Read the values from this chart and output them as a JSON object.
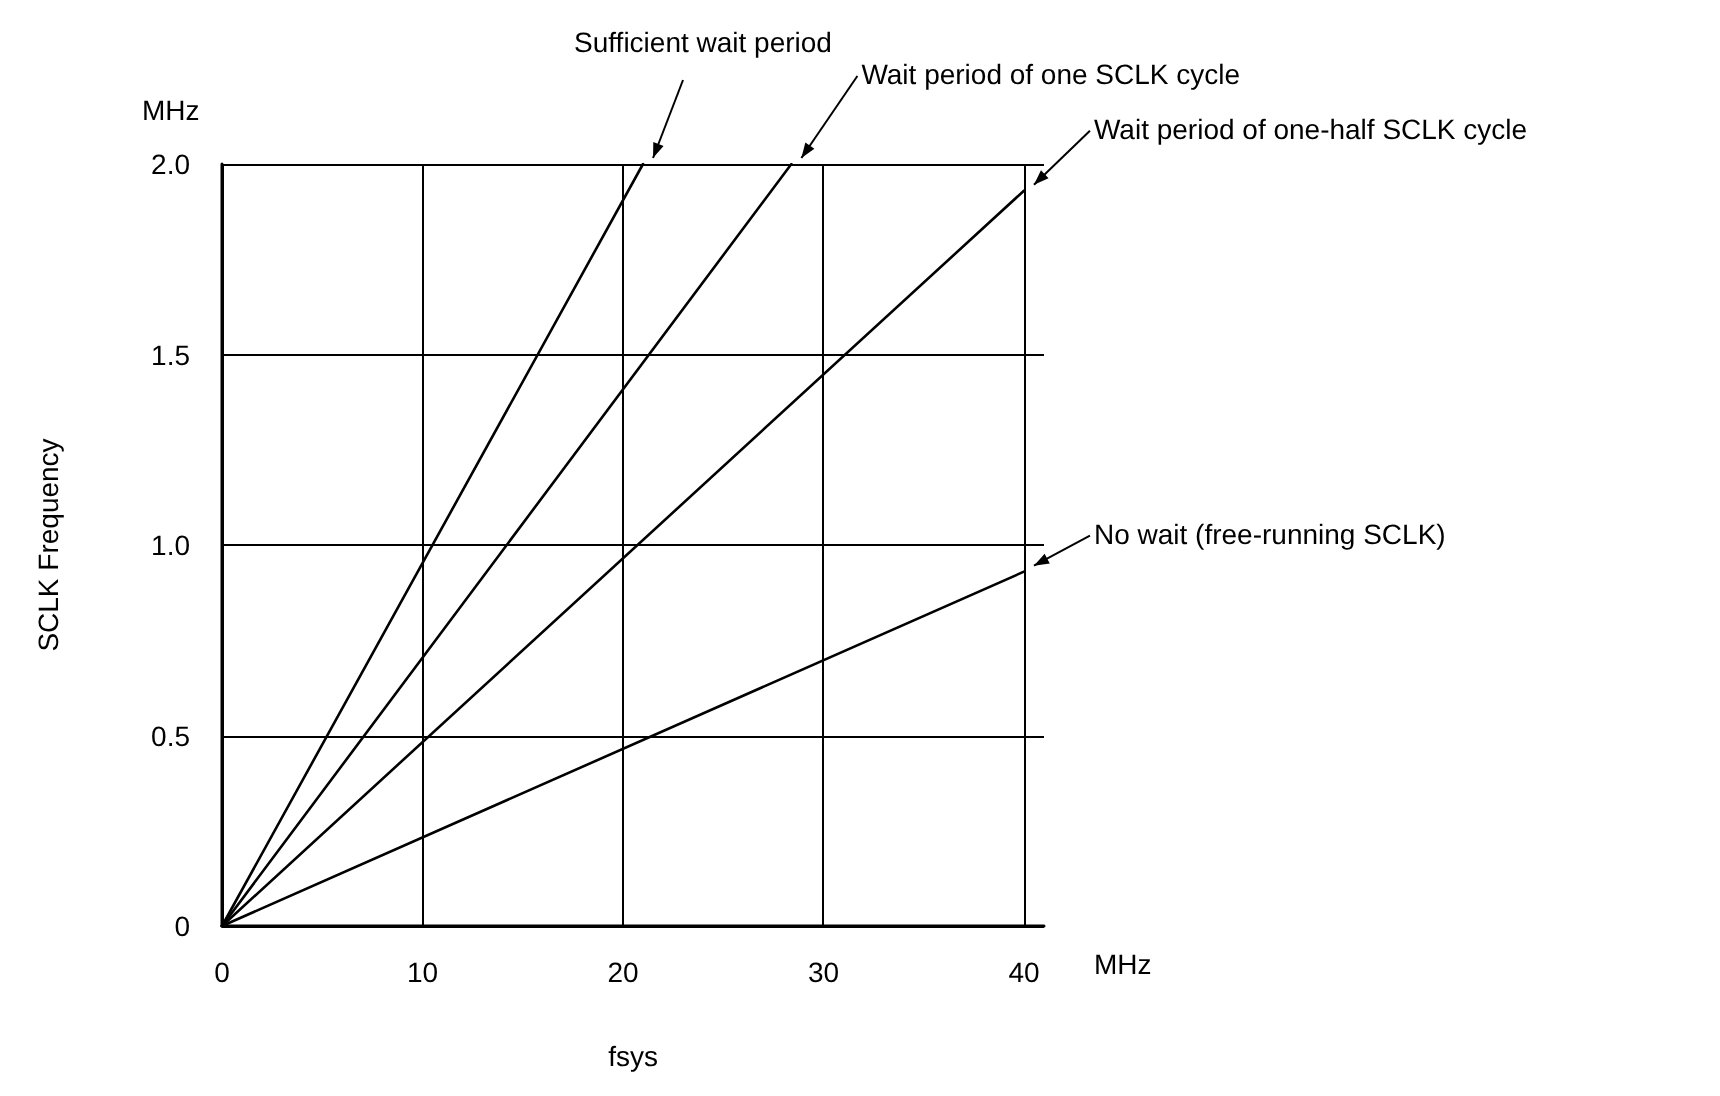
{
  "chart_data": {
    "type": "line",
    "xlabel": "fsys",
    "ylabel": "SCLK Frequency",
    "xlim": [
      0,
      41
    ],
    "ylim": [
      0,
      2
    ],
    "xticks": [
      0,
      10,
      20,
      30,
      40
    ],
    "yticks": [
      0,
      0.5,
      {
        "value": 1,
        "label": "1.0"
      },
      1.5,
      {
        "value": 2,
        "label": "2.0"
      }
    ],
    "grid": true,
    "marker": "none",
    "line_style": "solid",
    "series": [
      {
        "color": "#000000",
        "x": [
          0,
          21
        ],
        "values": [
          0,
          2.0
        ]
      },
      {
        "color": "#000000",
        "x": [
          0,
          28.4
        ],
        "values": [
          0,
          2.0
        ]
      },
      {
        "color": "#000000",
        "x": [
          0,
          40
        ],
        "values": [
          0,
          1.93
        ]
      },
      {
        "color": "#000000",
        "x": [
          0,
          40
        ],
        "values": [
          0,
          0.93
        ]
      }
    ],
    "annotations": [
      "MHz",
      "MHz",
      {
        "text": "Sufficient wait period",
        "x": 21,
        "y": 2.0
      },
      {
        "text": "Wait period of one SCLK cycle",
        "x": 28.4,
        "y": 2.0
      },
      {
        "text": "Wait period of one-half SCLK cycle",
        "x": 40,
        "y": 1.93
      },
      {
        "text": "No wait (free-running SCLK)",
        "x": 40,
        "y": 0.93
      }
    ]
  }
}
